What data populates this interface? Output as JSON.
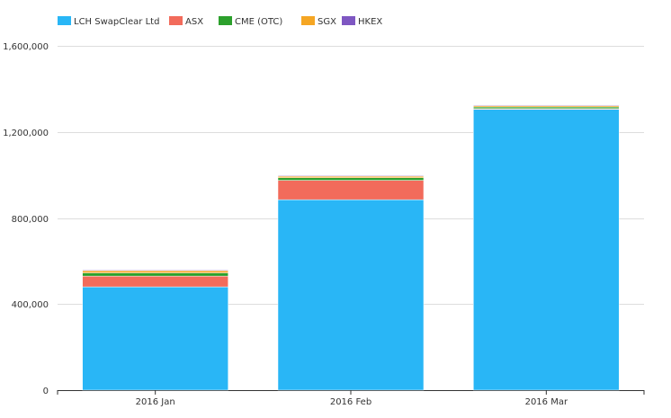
{
  "chart_data": {
    "type": "bar",
    "stacked": true,
    "categories": [
      "2016 Jan",
      "2016 Feb",
      "2016 Mar"
    ],
    "series": [
      {
        "name": "LCH SwapClear Ltd",
        "color": "#29b6f6",
        "values": [
          480000,
          885000,
          1305000
        ]
      },
      {
        "name": "ASX",
        "color": "#f26b5b",
        "values": [
          50000,
          90000,
          3000
        ]
      },
      {
        "name": "CME (OTC)",
        "color": "#2ca02c",
        "values": [
          15000,
          12000,
          8000
        ]
      },
      {
        "name": "SGX",
        "color": "#f5a623",
        "values": [
          10000,
          7000,
          6000
        ]
      },
      {
        "name": "HKEX",
        "color": "#7e57c2",
        "values": [
          3000,
          3000,
          3000
        ]
      }
    ],
    "yaxis": {
      "min": 0,
      "max": 1600000,
      "ticks": [
        0,
        400000,
        800000,
        1200000,
        1600000
      ],
      "tick_labels": [
        "0",
        "400,000",
        "800,000",
        "1,200,000",
        "1,600,000"
      ]
    },
    "grid": true,
    "legend_position": "top-left",
    "title": "",
    "xlabel": "",
    "ylabel": ""
  }
}
